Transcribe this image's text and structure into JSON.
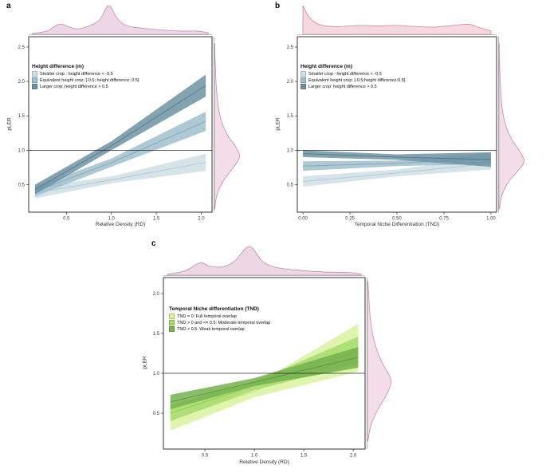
{
  "figure": {
    "background": "#ffffff"
  },
  "chart_data": [
    {
      "panel_label": "a",
      "type": "area",
      "xlabel": "Relative Density (RD)",
      "ylabel": "pLER",
      "xlim": [
        0.08,
        2.12
      ],
      "ylim": [
        0.1,
        2.65
      ],
      "xticks": {
        "values": [
          0.5,
          1.0,
          1.5,
          2.0
        ],
        "labels": [
          "0.5",
          "1.0",
          "1.5",
          "2.0"
        ]
      },
      "yticks": {
        "values": [
          0.5,
          1.0,
          1.5,
          2.0,
          2.5
        ],
        "labels": [
          "0.5",
          "1.0",
          "1.5",
          "2.0",
          "2.5"
        ]
      },
      "reference_line_y": 1.0,
      "legend_title": "Height difference (m)",
      "series": [
        {
          "name": "Smaller crop : height difference < -0.5",
          "fill": "#cfdfe6",
          "line": "#aecad4",
          "x": [
            0.15,
            1.0,
            2.05
          ],
          "lower": [
            0.3,
            0.52,
            0.7
          ],
          "upper": [
            0.46,
            0.62,
            0.95
          ]
        },
        {
          "name": "Equivalent height crop: [-0.5; height difference; 0.5]",
          "fill": "#a0c0cd",
          "line": "#7fa8b8",
          "x": [
            0.15,
            1.0,
            2.05
          ],
          "lower": [
            0.33,
            0.76,
            1.28
          ],
          "upper": [
            0.47,
            0.88,
            1.56
          ]
        },
        {
          "name": "Larger crop: height difference > 0.5",
          "fill": "#6d93a3",
          "line": "#527a8c",
          "x": [
            0.15,
            1.0,
            2.05
          ],
          "lower": [
            0.36,
            1.0,
            1.78
          ],
          "upper": [
            0.5,
            1.13,
            2.1
          ]
        }
      ],
      "top_density": {
        "fill": "#eed7e4",
        "stroke": "#c08fa9",
        "points": [
          [
            0.12,
            0.02
          ],
          [
            0.28,
            0.1
          ],
          [
            0.42,
            0.34
          ],
          [
            0.52,
            0.26
          ],
          [
            0.62,
            0.18
          ],
          [
            0.75,
            0.28
          ],
          [
            0.87,
            0.5
          ],
          [
            0.97,
            1.0
          ],
          [
            1.07,
            0.52
          ],
          [
            1.18,
            0.28
          ],
          [
            1.35,
            0.2
          ],
          [
            1.55,
            0.14
          ],
          [
            1.75,
            0.1
          ],
          [
            1.95,
            0.1
          ],
          [
            2.08,
            0.04
          ]
        ]
      },
      "right_density": {
        "fill": "#f3dde8",
        "stroke": "#c08fa9",
        "points": [
          [
            0.15,
            0.02
          ],
          [
            0.35,
            0.1
          ],
          [
            0.55,
            0.35
          ],
          [
            0.75,
            0.75
          ],
          [
            0.9,
            1.0
          ],
          [
            1.05,
            0.85
          ],
          [
            1.2,
            0.55
          ],
          [
            1.4,
            0.3
          ],
          [
            1.65,
            0.15
          ],
          [
            1.95,
            0.07
          ],
          [
            2.3,
            0.03
          ],
          [
            2.55,
            0.01
          ]
        ]
      }
    },
    {
      "panel_label": "b",
      "type": "area",
      "xlabel": "Temporal Niche Differentiation (TND)",
      "ylabel": "pLER",
      "xlim": [
        -0.03,
        1.03
      ],
      "ylim": [
        0.1,
        2.65
      ],
      "xticks": {
        "values": [
          0.0,
          0.25,
          0.5,
          0.75,
          1.0
        ],
        "labels": [
          "0.00",
          "0.25",
          "0.50",
          "0.75",
          "1.00"
        ]
      },
      "yticks": {
        "values": [
          0.5,
          1.0,
          1.5,
          2.0,
          2.5
        ],
        "labels": [
          "0.5",
          "1.0",
          "1.5",
          "2.0",
          "2.5"
        ]
      },
      "reference_line_y": 1.0,
      "legend_title": "Height difference (m)",
      "series": [
        {
          "name": "Smaller crop : height difference < -0.5",
          "fill": "#cfdfe6",
          "line": "#aecad4",
          "x": [
            0.0,
            0.5,
            1.0
          ],
          "lower": [
            0.47,
            0.62,
            0.72
          ],
          "upper": [
            0.62,
            0.72,
            0.9
          ]
        },
        {
          "name": "Equivalent height crop: [-0.5;height difference;0.5]",
          "fill": "#a0c0cd",
          "line": "#7fa8b8",
          "x": [
            0.0,
            0.5,
            1.0
          ],
          "lower": [
            0.7,
            0.77,
            0.8
          ],
          "upper": [
            0.84,
            0.85,
            0.96
          ]
        },
        {
          "name": "Larger crop: height difference > 0.5",
          "fill": "#6d93a3",
          "line": "#527a8c",
          "x": [
            0.0,
            0.5,
            1.0
          ],
          "lower": [
            0.9,
            0.86,
            0.76
          ],
          "upper": [
            1.0,
            0.94,
            0.97
          ]
        }
      ],
      "top_density": {
        "fill": "#f5d9de",
        "stroke": "#cc8798",
        "points": [
          [
            0.0,
            1.0
          ],
          [
            0.03,
            0.62
          ],
          [
            0.07,
            0.38
          ],
          [
            0.12,
            0.28
          ],
          [
            0.2,
            0.26
          ],
          [
            0.3,
            0.3
          ],
          [
            0.4,
            0.28
          ],
          [
            0.5,
            0.3
          ],
          [
            0.6,
            0.26
          ],
          [
            0.7,
            0.24
          ],
          [
            0.8,
            0.3
          ],
          [
            0.88,
            0.34
          ],
          [
            0.94,
            0.22
          ],
          [
            1.0,
            0.1
          ]
        ]
      },
      "right_density": {
        "fill": "#f3dde8",
        "stroke": "#c08fa9",
        "points": [
          [
            0.15,
            0.02
          ],
          [
            0.35,
            0.12
          ],
          [
            0.55,
            0.4
          ],
          [
            0.72,
            0.8
          ],
          [
            0.85,
            1.0
          ],
          [
            1.0,
            0.8
          ],
          [
            1.15,
            0.52
          ],
          [
            1.35,
            0.28
          ],
          [
            1.6,
            0.13
          ],
          [
            1.95,
            0.06
          ],
          [
            2.3,
            0.02
          ],
          [
            2.55,
            0.01
          ]
        ]
      }
    },
    {
      "panel_label": "c",
      "type": "area",
      "xlabel": "Relative Density (RD)",
      "ylabel": "pLER",
      "xlim": [
        0.08,
        2.12
      ],
      "ylim": [
        0.05,
        2.2
      ],
      "xticks": {
        "values": [
          0.5,
          1.0,
          1.5,
          2.0
        ],
        "labels": [
          "0.5",
          "1.0",
          "1.5",
          "2.0"
        ]
      },
      "yticks": {
        "values": [
          0.5,
          1.0,
          1.5,
          2.0
        ],
        "labels": [
          "0.5",
          "1.0",
          "1.5",
          "2.0"
        ]
      },
      "reference_line_y": 1.0,
      "legend_title": "Temporal Niche differentiation (TND)",
      "series": [
        {
          "name": "TND = 0: Full temporal overlap",
          "fill": "#d9f29e",
          "line": "#c3e27c",
          "x": [
            0.15,
            1.0,
            2.05
          ],
          "lower": [
            0.28,
            0.7,
            1.02
          ],
          "upper": [
            0.55,
            0.85,
            1.62
          ]
        },
        {
          "name": "TND > 0 and <= 0.5: Moderate temporal overlap",
          "fill": "#a8da6e",
          "line": "#8fc657",
          "x": [
            0.15,
            1.0,
            2.05
          ],
          "lower": [
            0.4,
            0.79,
            1.12
          ],
          "upper": [
            0.6,
            0.9,
            1.46
          ]
        },
        {
          "name": "TND > 0.5: Weak temporal overlap",
          "fill": "#76b24e",
          "line": "#5d993c",
          "x": [
            0.15,
            1.0,
            2.05
          ],
          "lower": [
            0.55,
            0.84,
            1.07
          ],
          "upper": [
            0.73,
            0.94,
            1.33
          ]
        }
      ],
      "top_density": {
        "fill": "#eed7e4",
        "stroke": "#c08fa9",
        "points": [
          [
            0.12,
            0.02
          ],
          [
            0.3,
            0.14
          ],
          [
            0.45,
            0.42
          ],
          [
            0.55,
            0.3
          ],
          [
            0.68,
            0.28
          ],
          [
            0.8,
            0.48
          ],
          [
            0.95,
            1.0
          ],
          [
            1.08,
            0.48
          ],
          [
            1.22,
            0.26
          ],
          [
            1.45,
            0.16
          ],
          [
            1.7,
            0.1
          ],
          [
            1.95,
            0.08
          ],
          [
            2.08,
            0.03
          ]
        ]
      },
      "right_density": {
        "fill": "#f3dde8",
        "stroke": "#c08fa9",
        "points": [
          [
            0.15,
            0.02
          ],
          [
            0.35,
            0.15
          ],
          [
            0.55,
            0.45
          ],
          [
            0.75,
            0.85
          ],
          [
            0.92,
            1.0
          ],
          [
            1.08,
            0.72
          ],
          [
            1.25,
            0.45
          ],
          [
            1.45,
            0.25
          ],
          [
            1.7,
            0.12
          ],
          [
            2.0,
            0.05
          ],
          [
            2.15,
            0.02
          ]
        ]
      }
    }
  ]
}
